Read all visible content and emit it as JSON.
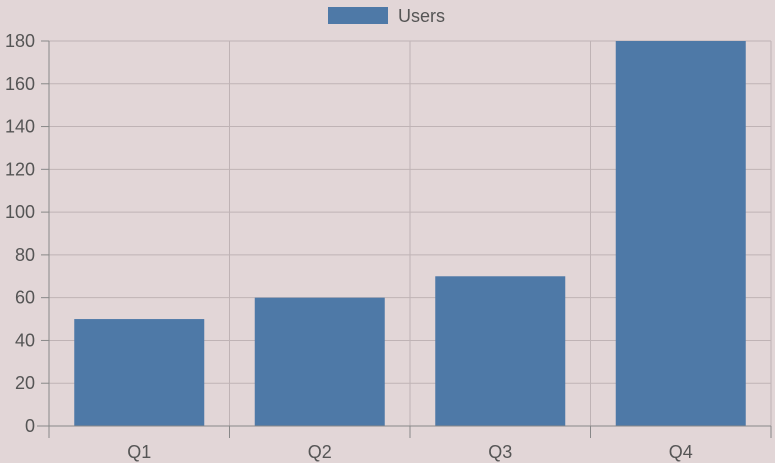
{
  "chart_data": {
    "type": "bar",
    "categories": [
      "Q1",
      "Q2",
      "Q3",
      "Q4"
    ],
    "series": [
      {
        "name": "Users",
        "values": [
          50,
          60,
          70,
          180
        ],
        "color": "#4e79a7"
      }
    ],
    "ylim": [
      0,
      180
    ],
    "yticks": [
      0,
      20,
      40,
      60,
      80,
      100,
      120,
      140,
      160,
      180
    ],
    "grid": true,
    "legend_position": "top-center"
  }
}
